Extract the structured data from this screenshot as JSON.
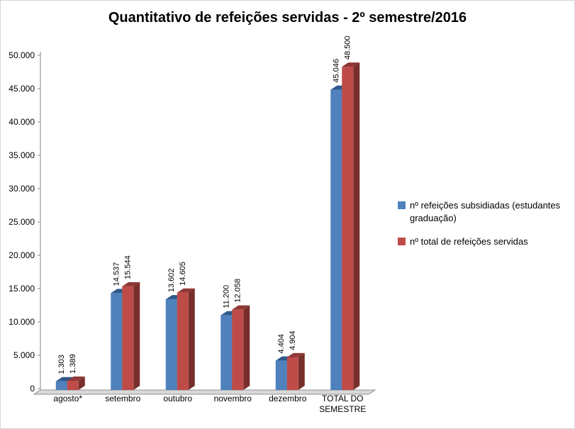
{
  "chart": {
    "title": "Quantitativo de refeições servidas - 2º semestre/2016"
  },
  "chart_data": {
    "type": "bar",
    "style": "3d-clustered",
    "title": "Quantitativo de refeições servidas - 2º semestre/2016",
    "xlabel": "",
    "ylabel": "",
    "categories": [
      "agosto*",
      "setembro",
      "outubro",
      "novembro",
      "dezembro",
      "TOTAL DO SEMESTRE"
    ],
    "categories_display": [
      [
        "agosto*"
      ],
      [
        "setembro"
      ],
      [
        "outubro"
      ],
      [
        "novembro"
      ],
      [
        "dezembro"
      ],
      [
        "TOTAL DO",
        "SEMESTRE"
      ]
    ],
    "series": [
      {
        "name": "nº refeições subsidiadas (estudantes graduação)",
        "values": [
          1303,
          14537,
          13602,
          11200,
          4404,
          45046
        ],
        "labels": [
          "1.303",
          "14.537",
          "13.602",
          "11.200",
          "4.404",
          "45.046"
        ],
        "color": "#4F81BD",
        "color_top": "#2F5A8B",
        "color_side": "#264A74"
      },
      {
        "name": "nº total de refeições servidas",
        "values": [
          1389,
          15544,
          14605,
          12058,
          4904,
          48500
        ],
        "labels": [
          "1.389",
          "15.544",
          "14.605",
          "12.058",
          "4.904",
          "48.500"
        ],
        "color": "#BE4B48",
        "color_top": "#8F3936",
        "color_side": "#782F2C"
      }
    ],
    "ylim": [
      0,
      50000
    ],
    "ytick_step": 5000,
    "yticks": [
      "0",
      "5.000",
      "10.000",
      "15.000",
      "20.000",
      "25.000",
      "30.000",
      "35.000",
      "40.000",
      "45.000",
      "50.000"
    ],
    "grid": false,
    "legend_position": "right",
    "floor_color": "#D9D9D9",
    "axis_color": "#868686"
  }
}
